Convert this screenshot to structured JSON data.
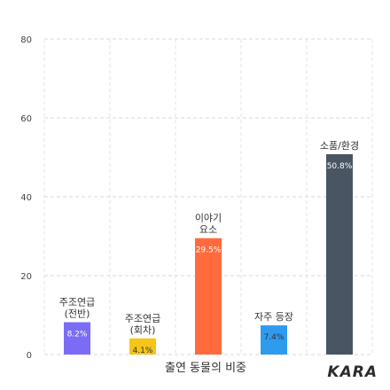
{
  "chart_data": {
    "type": "bar",
    "xlabel": "출연 동물의 비중",
    "ylim": [
      0,
      80
    ],
    "yticks": [
      0,
      20,
      40,
      60,
      80
    ],
    "grid": true,
    "categories": [
      {
        "lines": [
          "주조연급",
          "(전반)"
        ],
        "value": 8.2,
        "label": "8.2%",
        "color": "#7b6cf6",
        "label_dark": false
      },
      {
        "lines": [
          "주조연급",
          "(회차)"
        ],
        "value": 4.1,
        "label": "4.1%",
        "color": "#f5c518",
        "label_dark": true
      },
      {
        "lines": [
          "이야기",
          "요소"
        ],
        "value": 29.5,
        "label": "29.5%",
        "color": "#ff6b3d",
        "label_dark": false
      },
      {
        "lines": [
          "자주 등장"
        ],
        "value": 7.4,
        "label": "7.4%",
        "color": "#2f9bef",
        "label_dark": true
      },
      {
        "lines": [
          "소품/환경"
        ],
        "value": 50.8,
        "label": "50.8%",
        "color": "#4a5563",
        "label_dark": false
      }
    ]
  },
  "logo": {
    "text": "KARA"
  }
}
